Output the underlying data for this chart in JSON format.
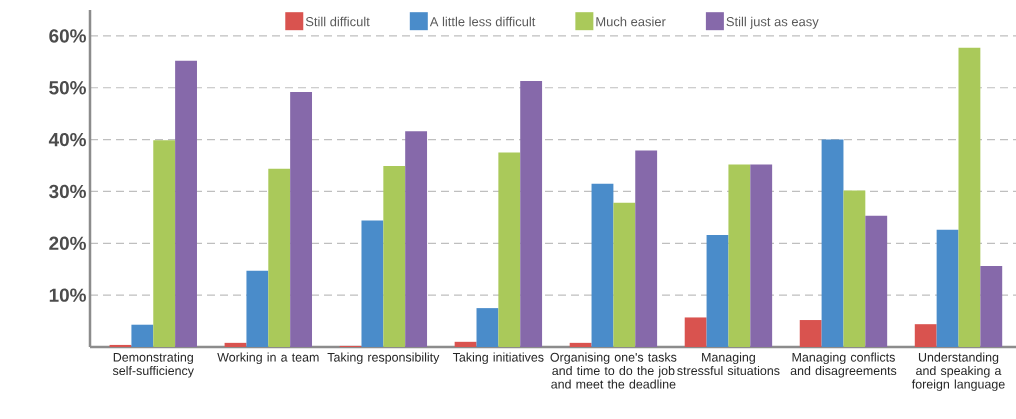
{
  "chart_data": {
    "type": "bar",
    "categories": [
      "Demonstrating self-sufficiency",
      "Working in a team",
      "Taking responsibility",
      "Taking initiatives",
      "Organising one's tasks and time to do the job and meet the deadline",
      "Managing stressful situations",
      "Managing conflicts and disagreements",
      "Understanding and speaking a foreign language"
    ],
    "series": [
      {
        "name": "Still difficult",
        "color": "#d9534f",
        "values": [
          0.4,
          0.8,
          0.2,
          1.0,
          0.8,
          5.7,
          5.2,
          4.4
        ]
      },
      {
        "name": "A little less difficult",
        "color": "#4a8cca",
        "values": [
          4.3,
          14.7,
          24.4,
          7.5,
          31.5,
          21.6,
          40.0,
          22.6
        ]
      },
      {
        "name": "Much easier",
        "color": "#aac95a",
        "values": [
          39.9,
          34.4,
          34.9,
          37.5,
          27.8,
          35.2,
          30.2,
          57.7
        ]
      },
      {
        "name": "Still just as easy",
        "color": "#8669aa",
        "values": [
          55.2,
          49.2,
          41.6,
          51.3,
          37.9,
          35.2,
          25.3,
          15.6
        ]
      }
    ],
    "ylim": [
      0,
      65
    ],
    "yticks": [
      {
        "value": 10,
        "label": "10%"
      },
      {
        "value": 20,
        "label": "20%"
      },
      {
        "value": 30,
        "label": "30%"
      },
      {
        "value": 40,
        "label": "40%"
      },
      {
        "value": 50,
        "label": "50%"
      },
      {
        "value": 60,
        "label": "60%"
      }
    ],
    "grid": "y",
    "legend": "top"
  }
}
